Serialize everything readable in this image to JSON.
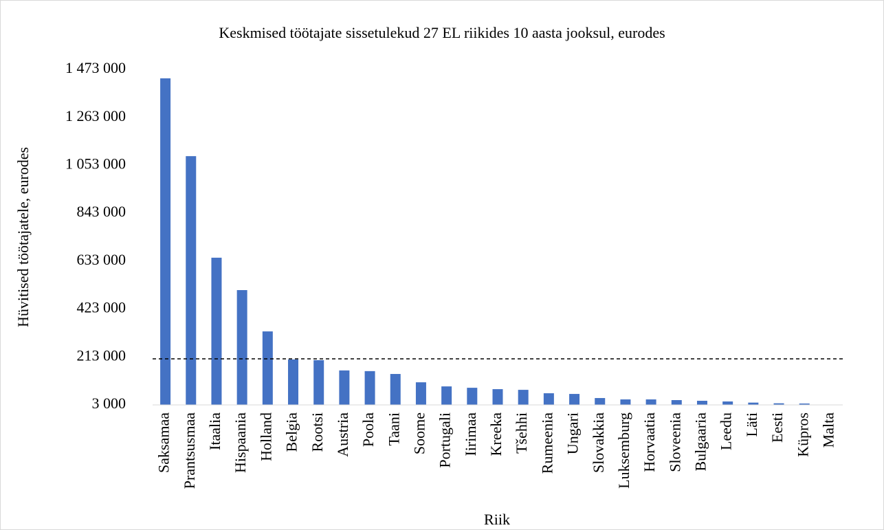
{
  "chart_data": {
    "type": "bar",
    "title": "Keskmised töötajate sissetulekud 27 EL riikides 10 aasta jooksul, eurodes",
    "x_label": "Riik",
    "y_label": "Hüvitised töötajatele, eurodes",
    "categories": [
      "Saksamaa",
      "Prantsusmaa",
      "Itaalia",
      "Hispaania",
      "Holland",
      "Belgia",
      "Rootsi",
      "Austria",
      "Poola",
      "Taani",
      "Soome",
      "Portugali",
      "Iirimaa",
      "Kreeka",
      "Tšehhi",
      "Rumeenia",
      "Ungari",
      "Slovakkia",
      "Luksemburg",
      "Horvaatia",
      "Sloveenia",
      "Bulgaaria",
      "Leedu",
      "Läti",
      "Eesti",
      "Küpros",
      "Malta"
    ],
    "values": [
      1434000,
      1093000,
      648000,
      506000,
      325000,
      202000,
      199000,
      154000,
      151000,
      138500,
      102000,
      84000,
      78000,
      72000,
      69000,
      54000,
      51000,
      33000,
      27000,
      27000,
      24000,
      21000,
      18000,
      13000,
      10000,
      9000,
      4000
    ],
    "color": "#4472c4",
    "reference_line": 205000,
    "ylim": [
      3000,
      1473000
    ],
    "yticks": [
      {
        "value": 3000,
        "label": "3 000"
      },
      {
        "value": 213000,
        "label": "213 000"
      },
      {
        "value": 423000,
        "label": "423 000"
      },
      {
        "value": 633000,
        "label": "633 000"
      },
      {
        "value": 843000,
        "label": "843 000"
      },
      {
        "value": 1053000,
        "label": "1 053 000"
      },
      {
        "value": 1263000,
        "label": "1 263 000"
      },
      {
        "value": 1473000,
        "label": "1 473 000"
      }
    ],
    "grid": false
  }
}
